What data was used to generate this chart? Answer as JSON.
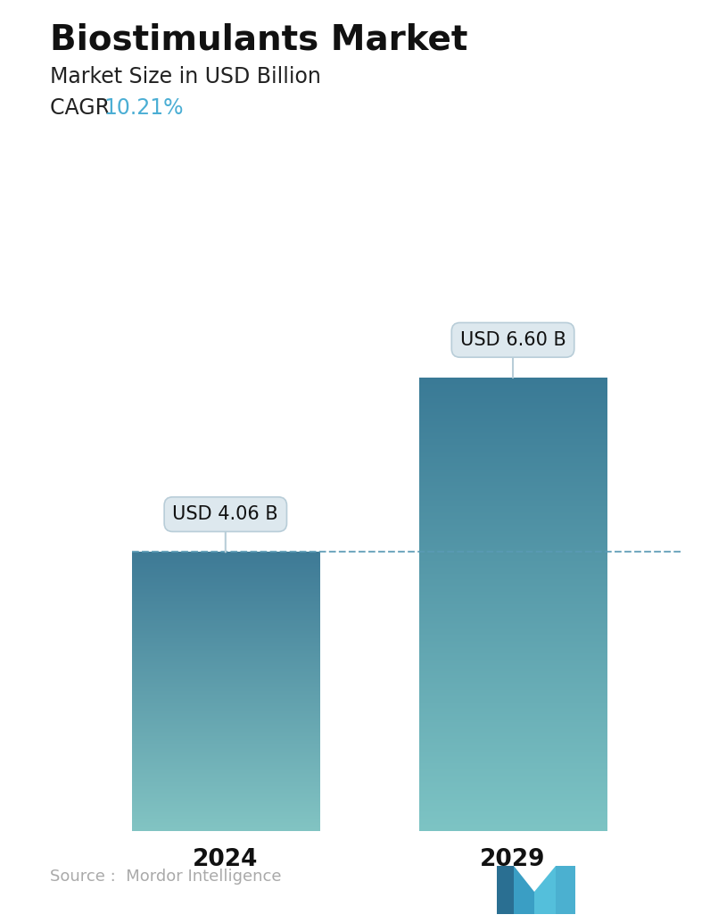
{
  "title": "Biostimulants Market",
  "subtitle": "Market Size in USD Billion",
  "cagr_label": "CAGR",
  "cagr_value": "10.21%",
  "cagr_color": "#4BAED4",
  "categories": [
    "2024",
    "2029"
  ],
  "values": [
    4.06,
    6.6
  ],
  "bar_labels": [
    "USD 4.06 B",
    "USD 6.60 B"
  ],
  "bar_top_color_left": "#3E7A96",
  "bar_bottom_color_left": "#82C4C3",
  "bar_top_color_right": "#3A7A96",
  "bar_bottom_color_right": "#7DC4C4",
  "dashed_line_color": "#5A9AB5",
  "dashed_line_y": 4.06,
  "ylim": [
    0,
    7.8
  ],
  "source_text": "Source :  Mordor Intelligence",
  "source_color": "#aaaaaa",
  "background_color": "#ffffff",
  "title_fontsize": 28,
  "subtitle_fontsize": 17,
  "cagr_fontsize": 17,
  "tick_fontsize": 19,
  "label_fontsize": 15,
  "bar_positions": [
    0.27,
    0.73
  ],
  "bar_width": 0.3
}
